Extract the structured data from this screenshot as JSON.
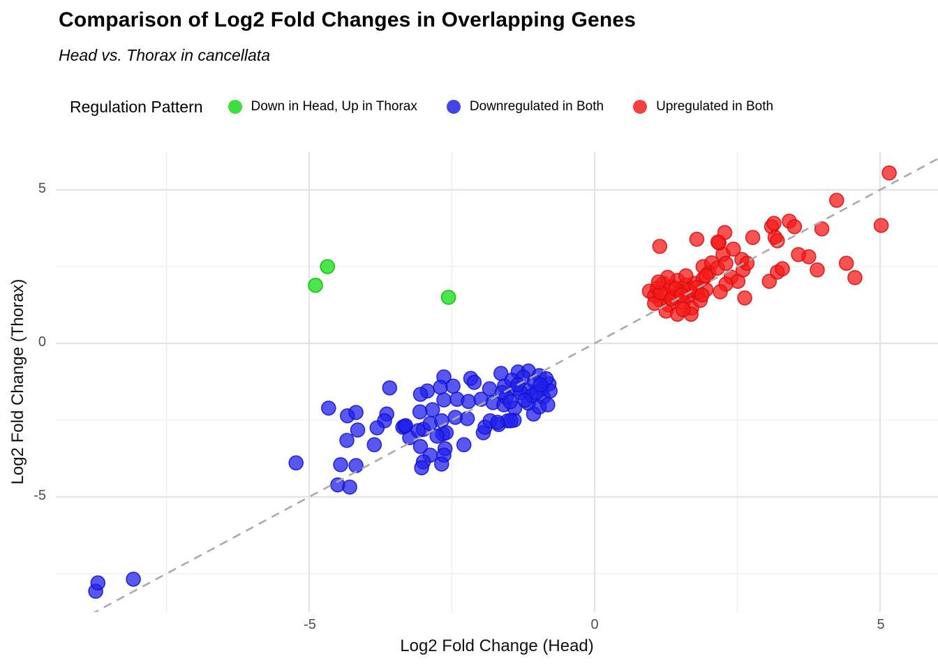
{
  "title": "Comparison of Log2 Fold Changes in Overlapping Genes",
  "subtitle": "Head vs. Thorax in cancellata",
  "legend": {
    "title": "Regulation Pattern",
    "items": [
      {
        "label": "Down in Head, Up in Thorax",
        "color": "#3ede3e"
      },
      {
        "label": "Downregulated in Both",
        "color": "#4343ea"
      },
      {
        "label": "Upregulated in Both",
        "color": "#f54040"
      }
    ]
  },
  "axes": {
    "x": {
      "label": "Log2 Fold Change (Head)",
      "ticks": [
        "-5",
        "0",
        "5"
      ]
    },
    "y": {
      "label": "Log2 Fold Change (Thorax)",
      "ticks": [
        "5",
        "0",
        "-5"
      ]
    }
  },
  "chart_data": {
    "type": "scatter",
    "title": "Comparison of Log2 Fold Changes in Overlapping Genes",
    "subtitle": "Head vs. Thorax in cancellata",
    "xlabel": "Log2 Fold Change (Head)",
    "ylabel": "Log2 Fold Change (Thorax)",
    "xlim": [
      -9.44,
      6.02
    ],
    "ylim": [
      -8.75,
      6.25
    ],
    "x_major_gridlines": [
      -5,
      0,
      5
    ],
    "x_minor_gridlines": [
      -7.5,
      -2.5,
      2.5
    ],
    "y_major_gridlines": [
      -5,
      0,
      5
    ],
    "y_minor_gridlines": [
      -7.5,
      -2.5,
      2.5
    ],
    "grid": true,
    "legend_position": "top",
    "reference_line": {
      "type": "identity y=x",
      "style": "dashed",
      "color": "#aaaaaa",
      "from": [
        -9.5,
        -9.5
      ],
      "to": [
        6.2,
        6.2
      ]
    },
    "point_radius_px": 10,
    "series": [
      {
        "name": "Down in Head, Up in Thorax",
        "fill": "rgba(30,224,30,0.8)",
        "stroke": "rgba(8,190,8,0.9)",
        "points": [
          [
            -4.68,
            2.5
          ],
          [
            -4.89,
            1.89
          ],
          [
            -2.56,
            1.5
          ]
        ]
      },
      {
        "name": "Downregulated in Both",
        "fill": "rgba(32,32,235,0.75)",
        "stroke": "rgba(16,16,205,0.85)",
        "points": [
          [
            -8.74,
            -8.07
          ],
          [
            -8.7,
            -7.8
          ],
          [
            -8.08,
            -7.68
          ],
          [
            -5.23,
            -3.89
          ],
          [
            -4.5,
            -4.61
          ],
          [
            -4.29,
            -4.68
          ],
          [
            -4.66,
            -2.11
          ],
          [
            -4.33,
            -2.36
          ],
          [
            -4.18,
            -2.25
          ],
          [
            -4.15,
            -2.82
          ],
          [
            -4.34,
            -3.16
          ],
          [
            -4.45,
            -3.95
          ],
          [
            -4.18,
            -3.98
          ],
          [
            -3.59,
            -1.45
          ],
          [
            -3.64,
            -2.3
          ],
          [
            -3.68,
            -2.52
          ],
          [
            -3.81,
            -2.75
          ],
          [
            -3.86,
            -3.3
          ],
          [
            -3.33,
            -2.7
          ],
          [
            -3.36,
            -2.73
          ],
          [
            -3.24,
            -3.07
          ],
          [
            -3.0,
            -2.8
          ],
          [
            -3.05,
            -3.36
          ],
          [
            -2.88,
            -3.64
          ],
          [
            -3.0,
            -3.86
          ],
          [
            -3.03,
            -4.05
          ],
          [
            -2.66,
            -2.95
          ],
          [
            -2.62,
            -3.43
          ],
          [
            -2.64,
            -3.64
          ],
          [
            -2.68,
            -3.93
          ],
          [
            -2.29,
            -3.3
          ],
          [
            -1.95,
            -2.91
          ],
          [
            -1.92,
            -2.73
          ],
          [
            -1.83,
            -2.52
          ],
          [
            -1.68,
            -2.64
          ],
          [
            -1.52,
            -2.52
          ],
          [
            -1.41,
            -2.5
          ],
          [
            -1.07,
            -2.3
          ],
          [
            -2.64,
            -1.09
          ],
          [
            -2.17,
            -1.14
          ],
          [
            -1.64,
            -0.98
          ],
          [
            -1.34,
            -0.93
          ],
          [
            -1.16,
            -0.9
          ],
          [
            -0.97,
            -1.05
          ],
          [
            -2.93,
            -1.55
          ],
          [
            -2.7,
            -1.43
          ],
          [
            -2.48,
            -1.39
          ],
          [
            -2.11,
            -1.27
          ],
          [
            -1.84,
            -1.48
          ],
          [
            -1.58,
            -1.39
          ],
          [
            -1.37,
            -1.48
          ],
          [
            -1.16,
            -1.55
          ],
          [
            -0.92,
            -1.48
          ],
          [
            -0.8,
            -1.32
          ],
          [
            -3.05,
            -1.66
          ],
          [
            -2.84,
            -2.16
          ],
          [
            -3.06,
            -2.23
          ],
          [
            -2.64,
            -1.84
          ],
          [
            -2.41,
            -1.82
          ],
          [
            -2.21,
            -1.89
          ],
          [
            -1.99,
            -1.82
          ],
          [
            -1.78,
            -1.93
          ],
          [
            -1.59,
            -2.0
          ],
          [
            -1.4,
            -2.11
          ],
          [
            -1.16,
            -1.95
          ],
          [
            -0.97,
            -2.07
          ],
          [
            -3.31,
            -2.68
          ],
          [
            -3.09,
            -2.84
          ],
          [
            -2.88,
            -2.61
          ],
          [
            -2.68,
            -2.52
          ],
          [
            -2.44,
            -2.41
          ],
          [
            -2.23,
            -2.45
          ],
          [
            -1.7,
            -2.57
          ],
          [
            -1.47,
            -2.52
          ],
          [
            -2.6,
            -2.91
          ],
          [
            -2.76,
            -3.02
          ],
          [
            -1.25,
            -1.1
          ],
          [
            -1.05,
            -1.25
          ],
          [
            -0.85,
            -1.15
          ],
          [
            -1.45,
            -1.2
          ],
          [
            -1.3,
            -1.6
          ],
          [
            -1.1,
            -1.7
          ],
          [
            -0.9,
            -1.75
          ],
          [
            -0.78,
            -1.55
          ],
          [
            -1.55,
            -1.75
          ],
          [
            -1.22,
            -1.85
          ],
          [
            -1.02,
            -1.6
          ],
          [
            -1.35,
            -1.35
          ],
          [
            -0.82,
            -2.0
          ],
          [
            -1.62,
            -1.6
          ],
          [
            -1.48,
            -1.9
          ],
          [
            -0.95,
            -1.35
          ]
        ]
      },
      {
        "name": "Upregulated in Both",
        "fill": "rgba(245,26,26,0.75)",
        "stroke": "rgba(214,12,12,0.85)",
        "points": [
          [
            0.96,
            1.7
          ],
          [
            1.05,
            1.55
          ],
          [
            1.1,
            1.8
          ],
          [
            1.15,
            1.4
          ],
          [
            1.2,
            1.95
          ],
          [
            1.25,
            1.6
          ],
          [
            1.3,
            1.25
          ],
          [
            1.35,
            1.85
          ],
          [
            1.4,
            1.5
          ],
          [
            1.45,
            2.05
          ],
          [
            1.5,
            1.7
          ],
          [
            1.55,
            1.35
          ],
          [
            1.6,
            1.9
          ],
          [
            1.65,
            1.55
          ],
          [
            1.7,
            1.15
          ],
          [
            1.75,
            1.95
          ],
          [
            1.8,
            1.65
          ],
          [
            1.85,
            1.4
          ],
          [
            1.9,
            2.1
          ],
          [
            1.95,
            1.75
          ],
          [
            1.25,
            1.05
          ],
          [
            1.45,
            0.95
          ],
          [
            1.69,
            0.95
          ],
          [
            1.55,
            1.1
          ],
          [
            1.05,
            1.3
          ],
          [
            1.15,
            1.65
          ],
          [
            1.35,
            1.45
          ],
          [
            1.6,
            2.2
          ],
          [
            1.42,
            1.78
          ],
          [
            1.28,
            2.15
          ],
          [
            1.12,
            2.0
          ],
          [
            1.65,
            1.72
          ],
          [
            1.52,
            1.58
          ],
          [
            1.78,
            1.82
          ],
          [
            1.88,
            1.58
          ],
          [
            1.9,
            2.5
          ],
          [
            2.0,
            2.3
          ],
          [
            2.05,
            2.62
          ],
          [
            2.15,
            2.45
          ],
          [
            1.95,
            2.2
          ],
          [
            2.25,
            2.9
          ],
          [
            2.3,
            2.61
          ],
          [
            2.39,
            2.16
          ],
          [
            2.51,
            2.02
          ],
          [
            2.3,
            1.93
          ],
          [
            2.63,
            1.48
          ],
          [
            2.2,
            1.68
          ],
          [
            2.58,
            2.73
          ],
          [
            2.6,
            2.39
          ],
          [
            2.67,
            2.61
          ],
          [
            3.06,
            2.02
          ],
          [
            3.2,
            2.32
          ],
          [
            3.29,
            2.43
          ],
          [
            3.9,
            2.39
          ],
          [
            3.75,
            2.82
          ],
          [
            3.57,
            2.89
          ],
          [
            1.14,
            3.16
          ],
          [
            1.79,
            3.39
          ],
          [
            2.18,
            3.27
          ],
          [
            2.28,
            3.61
          ],
          [
            2.16,
            3.3
          ],
          [
            2.43,
            3.07
          ],
          [
            2.77,
            3.45
          ],
          [
            3.1,
            3.8
          ],
          [
            3.16,
            3.45
          ],
          [
            3.41,
            3.98
          ],
          [
            3.98,
            3.73
          ],
          [
            3.2,
            3.34
          ],
          [
            3.14,
            3.91
          ],
          [
            3.5,
            3.8
          ],
          [
            4.24,
            4.66
          ],
          [
            5.16,
            5.55
          ],
          [
            5.02,
            3.84
          ],
          [
            4.41,
            2.61
          ],
          [
            4.56,
            2.14
          ]
        ]
      }
    ]
  }
}
